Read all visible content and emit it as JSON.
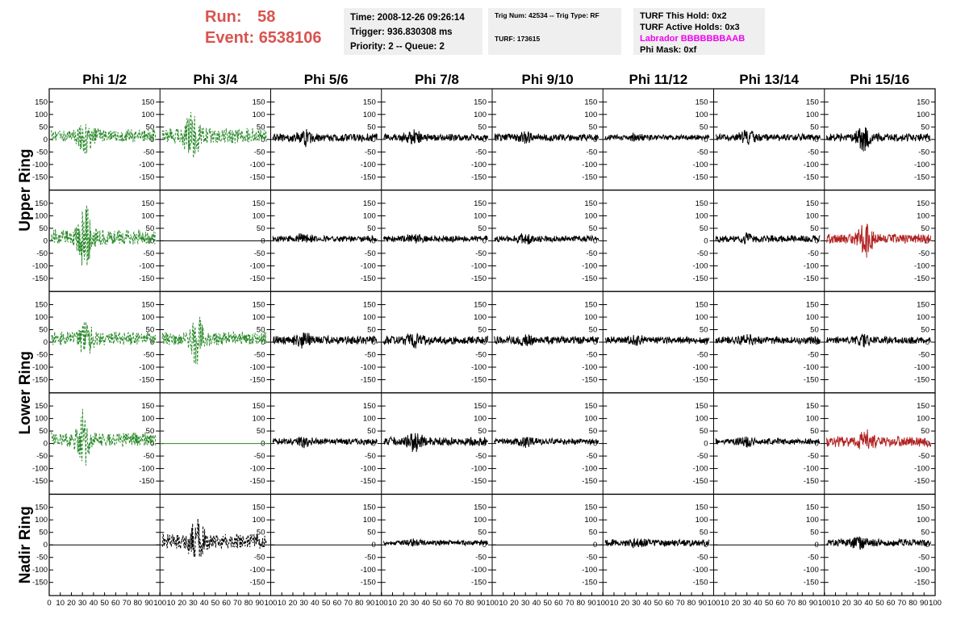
{
  "header": {
    "run_label": "Run:",
    "run_value": "58",
    "event_label": "Event:",
    "event_value": "6538106",
    "time": "Time: 2008-12-26 09:26:14",
    "trigger": "Trigger: 936.830308 ms",
    "priority": "Priority: 2 -- Queue: 2",
    "trig_num": "Trig Num: 42534 -- Trig Type: RF",
    "turf": "TURF: 173615",
    "turf_this_hold": "TURF This Hold: 0x2",
    "turf_active_holds": "TURF Active Holds: 0x3",
    "labrador": "Labrador BBBBBBBAAB",
    "phi_mask": "Phi Mask: 0xf"
  },
  "colors": {
    "header_red": "#d9534f",
    "magenta": "#ee00ee",
    "green": "#2a8a2a",
    "red": "#b22222",
    "black": "#000000",
    "box_bg": "#efefef"
  },
  "chart_data": {
    "type": "line",
    "columns": [
      "Phi 1/2",
      "Phi 3/4",
      "Phi 5/6",
      "Phi 7/8",
      "Phi 9/10",
      "Phi 11/12",
      "Phi 13/14",
      "Phi 15/16"
    ],
    "ring_labels": [
      {
        "name": "Upper Ring",
        "rows": [
          0,
          1
        ]
      },
      {
        "name": "Lower Ring",
        "rows": [
          2,
          3
        ]
      },
      {
        "name": "Nadir Ring",
        "rows": [
          4
        ]
      }
    ],
    "ylim": [
      -180,
      180
    ],
    "yticks": [
      -150,
      -100,
      -50,
      0,
      50,
      100,
      150
    ],
    "xlim": [
      0,
      100
    ],
    "xticks": [
      0,
      10,
      20,
      30,
      40,
      50,
      60,
      70,
      80,
      90,
      100
    ],
    "grid": false,
    "waveform_descriptions": {
      "g": "dashed green, large excursions",
      "k": "solid black noise",
      "r": "solid red noise",
      "f": "flat line at 0",
      "d": "dashed black, large excursions",
      "n": "no data"
    },
    "panels": [
      [
        {
          "color": "green",
          "style": "dashed",
          "amp": 30,
          "burst_x": 33,
          "peak": 95,
          "seed": 11
        },
        {
          "color": "green",
          "style": "dashed",
          "amp": 35,
          "burst_x": 30,
          "peak": 160,
          "seed": 12
        },
        {
          "color": "black",
          "style": "solid",
          "amp": 18,
          "burst_x": 30,
          "peak": 45,
          "seed": 13
        },
        {
          "color": "black",
          "style": "solid",
          "amp": 16,
          "burst_x": 30,
          "peak": 40,
          "seed": 14
        },
        {
          "color": "black",
          "style": "solid",
          "amp": 16,
          "burst_x": 30,
          "peak": 35,
          "seed": 15
        },
        {
          "color": "black",
          "style": "solid",
          "amp": 12,
          "burst_x": 30,
          "peak": 25,
          "seed": 16
        },
        {
          "color": "black",
          "style": "solid",
          "amp": 16,
          "burst_x": 30,
          "peak": 40,
          "seed": 17
        },
        {
          "color": "black",
          "style": "solid",
          "amp": 18,
          "burst_x": 35,
          "peak": 65,
          "seed": 18
        }
      ],
      [
        {
          "color": "green",
          "style": "dashed",
          "amp": 35,
          "burst_x": 33,
          "peak": 175,
          "seed": 21
        },
        {
          "color": "black",
          "style": "flat",
          "amp": 0,
          "burst_x": 0,
          "peak": 0,
          "seed": 22
        },
        {
          "color": "black",
          "style": "solid",
          "amp": 14,
          "burst_x": 30,
          "peak": 30,
          "seed": 23
        },
        {
          "color": "black",
          "style": "solid",
          "amp": 14,
          "burst_x": 30,
          "peak": 30,
          "seed": 24
        },
        {
          "color": "black",
          "style": "solid",
          "amp": 14,
          "burst_x": 30,
          "peak": 30,
          "seed": 25
        },
        {
          "color": "black",
          "style": "none",
          "amp": 0,
          "burst_x": 0,
          "peak": 0,
          "seed": 26
        },
        {
          "color": "black",
          "style": "solid",
          "amp": 16,
          "burst_x": 30,
          "peak": 30,
          "seed": 27
        },
        {
          "color": "red",
          "style": "solid",
          "amp": 22,
          "burst_x": 37,
          "peak": 95,
          "seed": 28
        }
      ],
      [
        {
          "color": "green",
          "style": "dashed",
          "amp": 30,
          "burst_x": 33,
          "peak": 85,
          "seed": 31
        },
        {
          "color": "green",
          "style": "dashed",
          "amp": 30,
          "burst_x": 33,
          "peak": 120,
          "seed": 32
        },
        {
          "color": "black",
          "style": "solid",
          "amp": 20,
          "burst_x": 30,
          "peak": 40,
          "seed": 33
        },
        {
          "color": "black",
          "style": "solid",
          "amp": 20,
          "burst_x": 30,
          "peak": 40,
          "seed": 34
        },
        {
          "color": "black",
          "style": "solid",
          "amp": 18,
          "burst_x": 30,
          "peak": 30,
          "seed": 35
        },
        {
          "color": "black",
          "style": "solid",
          "amp": 16,
          "burst_x": 30,
          "peak": 30,
          "seed": 36
        },
        {
          "color": "black",
          "style": "solid",
          "amp": 18,
          "burst_x": 30,
          "peak": 30,
          "seed": 37
        },
        {
          "color": "black",
          "style": "solid",
          "amp": 16,
          "burst_x": 35,
          "peak": 35,
          "seed": 38
        }
      ],
      [
        {
          "color": "green",
          "style": "dashed",
          "amp": 35,
          "burst_x": 30,
          "peak": 140,
          "seed": 41
        },
        {
          "color": "green",
          "style": "flat",
          "amp": 0,
          "burst_x": 0,
          "peak": 0,
          "seed": 42
        },
        {
          "color": "black",
          "style": "solid",
          "amp": 14,
          "burst_x": 30,
          "peak": 30,
          "seed": 43
        },
        {
          "color": "black",
          "style": "solid",
          "amp": 20,
          "burst_x": 30,
          "peak": 50,
          "seed": 44
        },
        {
          "color": "black",
          "style": "solid",
          "amp": 14,
          "burst_x": 30,
          "peak": 30,
          "seed": 45
        },
        {
          "color": "black",
          "style": "none",
          "amp": 0,
          "burst_x": 0,
          "peak": 0,
          "seed": 46
        },
        {
          "color": "black",
          "style": "solid",
          "amp": 14,
          "burst_x": 30,
          "peak": 30,
          "seed": 47
        },
        {
          "color": "red",
          "style": "solid",
          "amp": 25,
          "burst_x": 37,
          "peak": 65,
          "seed": 48
        }
      ],
      [
        {
          "color": "black",
          "style": "flat",
          "amp": 0,
          "burst_x": 0,
          "peak": 0,
          "seed": 51
        },
        {
          "color": "black",
          "style": "dashed",
          "amp": 35,
          "burst_x": 33,
          "peak": 130,
          "seed": 52
        },
        {
          "color": "black",
          "style": "flat",
          "amp": 0,
          "burst_x": 0,
          "peak": 0,
          "seed": 53
        },
        {
          "color": "black",
          "style": "solid",
          "amp": 12,
          "burst_x": 30,
          "peak": 20,
          "seed": 54
        },
        {
          "color": "black",
          "style": "flat",
          "amp": 0,
          "burst_x": 0,
          "peak": 0,
          "seed": 55
        },
        {
          "color": "black",
          "style": "solid",
          "amp": 16,
          "burst_x": 30,
          "peak": 25,
          "seed": 56
        },
        {
          "color": "black",
          "style": "flat",
          "amp": 0,
          "burst_x": 0,
          "peak": 0,
          "seed": 57
        },
        {
          "color": "black",
          "style": "solid",
          "amp": 16,
          "burst_x": 30,
          "peak": 40,
          "seed": 58
        }
      ]
    ]
  }
}
